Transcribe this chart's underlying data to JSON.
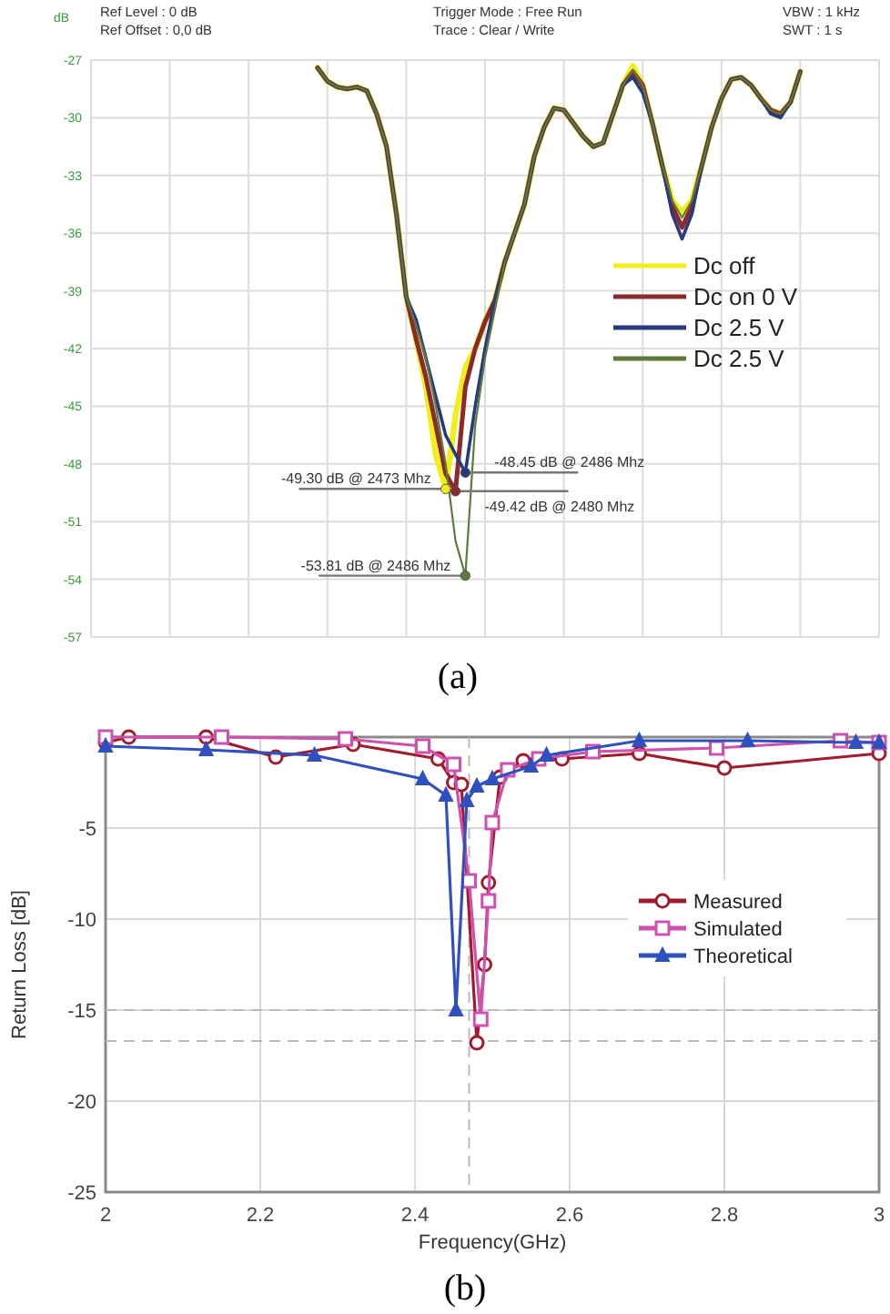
{
  "chart_data": [
    {
      "type": "line",
      "title": "(a)",
      "ylabel": "dB",
      "categories": [
        null,
        null,
        null,
        null,
        null,
        null,
        null,
        null,
        null,
        null,
        null,
        null,
        null,
        null,
        null,
        null,
        null,
        null,
        null,
        null,
        null,
        null,
        null,
        null,
        null,
        null,
        null,
        null,
        null,
        null,
        null,
        null,
        null,
        null,
        null,
        null,
        null,
        null,
        null,
        null,
        null,
        null,
        null,
        null,
        null,
        null,
        null,
        null,
        null,
        null,
        null,
        null,
        null,
        null,
        null,
        null,
        null,
        null,
        null,
        null,
        null,
        null,
        null,
        null,
        null,
        null,
        null,
        null,
        null,
        null,
        null,
        null,
        null,
        null,
        null,
        null,
        null,
        null,
        null,
        null,
        null
      ],
      "ylim": [
        -57,
        -27
      ],
      "yticks": [
        -57,
        -54,
        -51,
        -48,
        -45,
        -42,
        -39,
        -36,
        -33,
        -30,
        -27
      ],
      "grid": true,
      "legend": "right",
      "series": [
        {
          "name": "Dc off",
          "color": "#f2ee1c",
          "values": [
            null,
            null,
            null,
            null,
            null,
            null,
            null,
            null,
            null,
            null,
            null,
            null,
            null,
            null,
            null,
            null,
            null,
            null,
            null,
            null,
            null,
            null,
            null,
            -27.4,
            -28.1,
            -28.4,
            -28.5,
            -28.4,
            -28.6,
            -29.8,
            -31.5,
            -35,
            -39.3,
            -41.5,
            -44,
            -47.5,
            -49.3,
            -45.5,
            -43,
            -42,
            -40.6,
            -39.5,
            -37.5,
            -36,
            -34.5,
            -32,
            -30.5,
            -29.5,
            -29.6,
            -30.3,
            -31,
            -31.5,
            -31.3,
            -29.8,
            -28.3,
            -27.3,
            -28.3,
            -30.3,
            -32.5,
            -34.3,
            -34.9,
            -34.3,
            -32.5,
            -30.5,
            -29,
            -28,
            -27.9,
            -28.3,
            -29,
            -29.6,
            -29.8,
            -29.2,
            -27.6,
            null,
            null,
            null,
            null,
            null,
            null,
            null,
            null
          ]
        },
        {
          "name": "Dc on 0 V",
          "color": "#8b2a2a",
          "values": [
            null,
            null,
            null,
            null,
            null,
            null,
            null,
            null,
            null,
            null,
            null,
            null,
            null,
            null,
            null,
            null,
            null,
            null,
            null,
            null,
            null,
            null,
            null,
            -27.4,
            -28.1,
            -28.4,
            -28.5,
            -28.4,
            -28.6,
            -29.8,
            -31.5,
            -35,
            -39.3,
            -41.5,
            -43.5,
            -46,
            -48.5,
            -49.42,
            -44,
            -42,
            -40.6,
            -39.5,
            -37.5,
            -36,
            -34.5,
            -32,
            -30.5,
            -29.5,
            -29.6,
            -30.3,
            -31,
            -31.5,
            -31.3,
            -29.8,
            -28.3,
            -27.6,
            -28.3,
            -30.3,
            -32.5,
            -34.6,
            -35.7,
            -34.6,
            -32.5,
            -30.5,
            -29,
            -28,
            -27.9,
            -28.3,
            -29,
            -29.6,
            -29.8,
            -29.2,
            -27.6,
            null,
            null,
            null,
            null,
            null,
            null,
            null,
            null
          ]
        },
        {
          "name": "Dc 2.5 V",
          "color": "#263a7c",
          "values": [
            null,
            null,
            null,
            null,
            null,
            null,
            null,
            null,
            null,
            null,
            null,
            null,
            null,
            null,
            null,
            null,
            null,
            null,
            null,
            null,
            null,
            null,
            null,
            -27.4,
            -28.1,
            -28.4,
            -28.5,
            -28.4,
            -28.6,
            -29.8,
            -31.5,
            -35,
            -39.3,
            -40.5,
            -42.5,
            -44.5,
            -46.5,
            -47.5,
            -48.45,
            -45,
            -42,
            -39.5,
            -37.5,
            -36,
            -34.5,
            -32,
            -30.5,
            -29.5,
            -29.6,
            -30.3,
            -31,
            -31.5,
            -31.3,
            -29.8,
            -28.3,
            -27.9,
            -28.7,
            -30.3,
            -32.5,
            -35,
            -36.3,
            -35,
            -32.5,
            -30.5,
            -29,
            -28,
            -27.9,
            -28.3,
            -29,
            -29.8,
            -30,
            -29.2,
            -27.6,
            null,
            null,
            null,
            null,
            null,
            null,
            null,
            null
          ]
        },
        {
          "name": "Dc 2.5 V",
          "color": "#5e7a3c",
          "values": [
            null,
            null,
            null,
            null,
            null,
            null,
            null,
            null,
            null,
            null,
            null,
            null,
            null,
            null,
            null,
            null,
            null,
            null,
            null,
            null,
            null,
            null,
            null,
            -27.4,
            -28.1,
            -28.4,
            -28.5,
            -28.4,
            -28.6,
            -29.8,
            -31.5,
            -35,
            -39.3,
            -40.8,
            -42.5,
            -45,
            -48,
            -52,
            -53.81,
            -46,
            -42.5,
            -40,
            -37.5,
            -36,
            -34.5,
            -32,
            -30.5,
            -29.5,
            -29.6,
            -30.3,
            -31,
            -31.5,
            -31.3,
            -29.8,
            -28.3,
            -27.5,
            -28.3,
            -30.3,
            -32.5,
            -34.3,
            -35.2,
            -34.3,
            -32.5,
            -30.5,
            -29,
            -28,
            -27.9,
            -28.3,
            -29,
            -29.6,
            -29.8,
            -29.2,
            -27.6,
            null,
            null,
            null,
            null,
            null,
            null,
            null,
            null
          ]
        }
      ],
      "annotations": [
        "Ref Level : 0   dB",
        "Ref Offset : 0,0 dB",
        "Trigger Mode : Free Run",
        "Trace : Clear / Write",
        "VBW : 1 kHz",
        "SWT : 1 s",
        "-49.30 dB @ 2473  Mhz",
        "-49.42 dB @ 2480 Mhz",
        "-48.45 dB @ 2486 Mhz",
        "-53.81 dB @ 2486 Mhz"
      ]
    },
    {
      "type": "line",
      "title": "(b)",
      "xlabel": "Frequency(GHz)",
      "ylabel": "Return Loss [dB]",
      "xlim": [
        2,
        3
      ],
      "xticks": [
        2,
        2.2,
        2.4,
        2.6,
        2.8,
        3
      ],
      "ylim": [
        -25,
        0
      ],
      "yticks": [
        -25,
        -20,
        -15,
        -10,
        -5
      ],
      "grid": true,
      "legend": "right",
      "ref_lines": [
        {
          "axis": "y",
          "value": -15,
          "color": "#bbbbbb",
          "line_style": "dashed"
        },
        {
          "axis": "y",
          "value": -16.7,
          "color": "#bbbbbb",
          "line_style": "dashed"
        },
        {
          "axis": "x",
          "value": 2.47,
          "color": "#bbbbbb",
          "line_style": "dashed"
        }
      ],
      "series": [
        {
          "name": "Measured",
          "color": "#a01c2c",
          "marker": "circle",
          "x": [
            2,
            2.03,
            2.13,
            2.22,
            2.32,
            2.43,
            2.45,
            2.46,
            2.48,
            2.49,
            2.495,
            2.51,
            2.54,
            2.59,
            2.69,
            2.8,
            3
          ],
          "values": [
            -0.3,
            0,
            0,
            -1.1,
            -0.4,
            -1.2,
            -2.5,
            -2.6,
            -16.8,
            -12.5,
            -8,
            -2.2,
            -1.3,
            -1.2,
            -0.9,
            -1.7,
            -0.9
          ]
        },
        {
          "name": "Simulated",
          "color": "#d050b0",
          "marker": "square",
          "x": [
            2,
            2.15,
            2.31,
            2.41,
            2.45,
            2.47,
            2.485,
            2.495,
            2.5,
            2.52,
            2.56,
            2.63,
            2.79,
            2.95,
            3
          ],
          "values": [
            0,
            0,
            -0.1,
            -0.5,
            -1.5,
            -7.9,
            -15.5,
            -9,
            -4.7,
            -1.8,
            -1.2,
            -0.8,
            -0.6,
            -0.2,
            -0.3
          ]
        },
        {
          "name": "Theoretical",
          "color": "#3050c0",
          "marker": "triangle",
          "x": [
            2,
            2.13,
            2.27,
            2.41,
            2.44,
            2.453,
            2.467,
            2.48,
            2.5,
            2.55,
            2.57,
            2.69,
            2.83,
            2.97,
            3
          ],
          "values": [
            -0.5,
            -0.7,
            -1,
            -2.3,
            -3.2,
            -15,
            -3.5,
            -2.7,
            -2.3,
            -1.6,
            -1,
            -0.2,
            -0.2,
            -0.3,
            -0.3
          ]
        }
      ]
    }
  ]
}
